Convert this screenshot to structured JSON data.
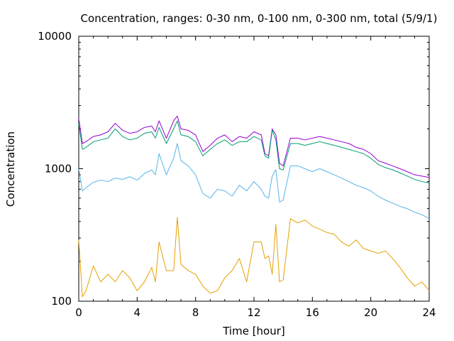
{
  "chart_data": {
    "type": "line",
    "title": "Concentration, ranges: 0-30 nm, 0-100 nm, 0-300 nm, total (5/9/1)",
    "xlabel": "Time [hour]",
    "ylabel": "Concentration",
    "xlim": [
      0,
      24
    ],
    "ylim": [
      100,
      10000
    ],
    "yscale": "log",
    "grid": false,
    "x_ticks": [
      0,
      4,
      8,
      12,
      16,
      20,
      24
    ],
    "y_ticks": [
      100,
      1000,
      10000
    ],
    "x_tick_labels": [
      "0",
      "4",
      "8",
      "12",
      "16",
      "20",
      "24"
    ],
    "y_tick_labels": [
      "100",
      "1000",
      "10000"
    ],
    "x": [
      0,
      0.25,
      0.5,
      1,
      1.5,
      2,
      2.5,
      3,
      3.5,
      4,
      4.5,
      5,
      5.25,
      5.5,
      6,
      6.5,
      6.75,
      7,
      7.5,
      8,
      8.5,
      9,
      9.5,
      10,
      10.5,
      11,
      11.5,
      12,
      12.5,
      12.75,
      13,
      13.25,
      13.5,
      13.75,
      14,
      14.5,
      15,
      15.5,
      16,
      16.5,
      17,
      17.5,
      18,
      18.5,
      19,
      19.5,
      20,
      20.5,
      21,
      21.5,
      22,
      22.5,
      23,
      23.5,
      24
    ],
    "series": [
      {
        "color": "#9400d3",
        "values": [
          2400,
          1550,
          1600,
          1750,
          1800,
          1900,
          2200,
          1950,
          1850,
          1900,
          2050,
          2100,
          1900,
          2300,
          1700,
          2300,
          2500,
          2000,
          1950,
          1800,
          1350,
          1500,
          1700,
          1800,
          1600,
          1750,
          1700,
          1900,
          1800,
          1300,
          1250,
          2000,
          1800,
          1100,
          1050,
          1700,
          1700,
          1650,
          1700,
          1750,
          1700,
          1650,
          1600,
          1550,
          1450,
          1400,
          1300,
          1150,
          1100,
          1050,
          1000,
          950,
          900,
          880,
          860
        ]
      },
      {
        "color": "#009e73",
        "values": [
          2200,
          1400,
          1450,
          1600,
          1650,
          1700,
          2000,
          1750,
          1650,
          1700,
          1850,
          1900,
          1700,
          2050,
          1550,
          2000,
          2300,
          1800,
          1750,
          1600,
          1250,
          1400,
          1550,
          1650,
          1500,
          1600,
          1600,
          1750,
          1650,
          1250,
          1200,
          1950,
          1650,
          1000,
          980,
          1550,
          1550,
          1500,
          1550,
          1600,
          1550,
          1500,
          1450,
          1400,
          1350,
          1300,
          1200,
          1080,
          1020,
          980,
          930,
          880,
          830,
          800,
          780
        ]
      },
      {
        "color": "#56b4e9",
        "values": [
          1000,
          680,
          720,
          790,
          820,
          800,
          850,
          830,
          870,
          820,
          920,
          980,
          900,
          1300,
          900,
          1200,
          1550,
          1150,
          1050,
          900,
          650,
          600,
          700,
          680,
          620,
          750,
          680,
          800,
          700,
          620,
          600,
          880,
          980,
          560,
          580,
          1050,
          1050,
          1000,
          950,
          1000,
          950,
          900,
          850,
          800,
          750,
          720,
          680,
          620,
          580,
          550,
          520,
          500,
          470,
          450,
          420
        ]
      },
      {
        "color": "#e69f00",
        "values": [
          290,
          108,
          120,
          185,
          140,
          160,
          140,
          170,
          150,
          120,
          140,
          180,
          140,
          280,
          170,
          170,
          430,
          190,
          170,
          160,
          130,
          115,
          120,
          150,
          170,
          210,
          140,
          280,
          280,
          210,
          220,
          160,
          380,
          140,
          145,
          420,
          390,
          410,
          370,
          350,
          330,
          320,
          280,
          260,
          290,
          250,
          240,
          230,
          240,
          210,
          180,
          150,
          130,
          140,
          120
        ]
      }
    ]
  }
}
